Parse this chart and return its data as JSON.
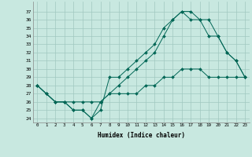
{
  "xlabel": "Humidex (Indice chaleur)",
  "xlim": [
    -0.5,
    23.5
  ],
  "ylim": [
    23.5,
    38.2
  ],
  "xticks": [
    0,
    1,
    2,
    3,
    4,
    5,
    6,
    7,
    8,
    9,
    10,
    11,
    12,
    13,
    14,
    15,
    16,
    17,
    18,
    19,
    20,
    21,
    22,
    23
  ],
  "yticks": [
    24,
    25,
    26,
    27,
    28,
    29,
    30,
    31,
    32,
    33,
    34,
    35,
    36,
    37
  ],
  "background_color": "#c8e8e0",
  "grid_color": "#a0c8c0",
  "line_color": "#006655",
  "line1_x": [
    0,
    1,
    2,
    3,
    4,
    5,
    6,
    7,
    8,
    9,
    10,
    11,
    12,
    13,
    14,
    15,
    16,
    17,
    18,
    19,
    20,
    21,
    22,
    23
  ],
  "line1_y": [
    28,
    27,
    26,
    26,
    25,
    25,
    24,
    25,
    29,
    29,
    30,
    31,
    32,
    33,
    35,
    36,
    37,
    37,
    36,
    34,
    34,
    32,
    31,
    29
  ],
  "line2_x": [
    0,
    1,
    2,
    3,
    4,
    5,
    6,
    7,
    8,
    9,
    10,
    11,
    12,
    13,
    14,
    15,
    16,
    17,
    18,
    19,
    20,
    21,
    22,
    23
  ],
  "line2_y": [
    28,
    27,
    26,
    26,
    25,
    25,
    24,
    26,
    27,
    28,
    29,
    30,
    31,
    32,
    34,
    36,
    37,
    36,
    36,
    36,
    34,
    32,
    31,
    29
  ],
  "line3_x": [
    0,
    1,
    2,
    3,
    4,
    5,
    6,
    7,
    8,
    9,
    10,
    11,
    12,
    13,
    14,
    15,
    16,
    17,
    18,
    19,
    20,
    21,
    22,
    23
  ],
  "line3_y": [
    28,
    27,
    26,
    26,
    26,
    26,
    26,
    26,
    27,
    27,
    27,
    27,
    28,
    28,
    29,
    29,
    30,
    30,
    30,
    29,
    29,
    29,
    29,
    29
  ]
}
